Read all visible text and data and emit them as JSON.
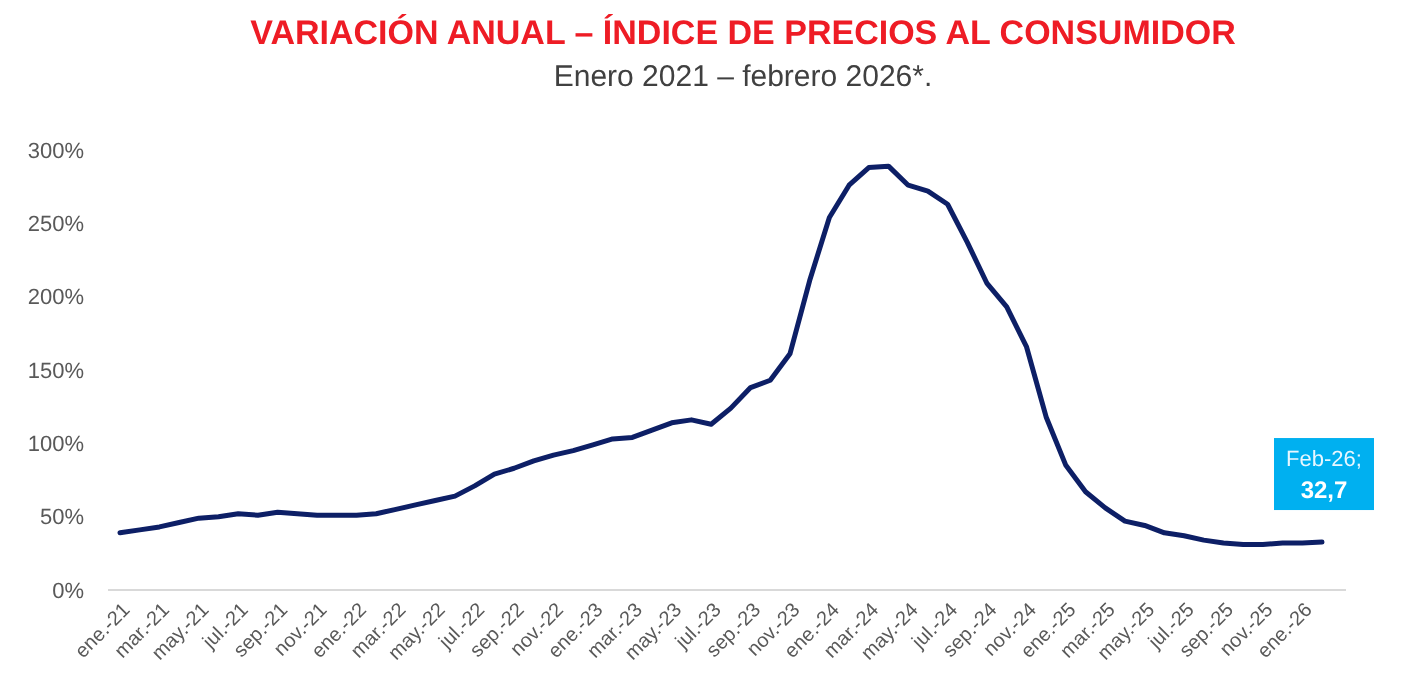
{
  "chart_data": {
    "type": "line",
    "title": "VARIACIÓN ANUAL – ÍNDICE DE PRECIOS AL CONSUMIDOR",
    "subtitle": "Enero 2021 – febrero 2026*.",
    "categories": [
      "ene.-21",
      null,
      "mar.-21",
      null,
      "may.-21",
      null,
      "jul.-21",
      null,
      "sep.-21",
      null,
      "nov.-21",
      null,
      "ene.-22",
      null,
      "mar.-22",
      null,
      "may.-22",
      null,
      "jul.-22",
      null,
      "sep.-22",
      null,
      "nov.-22",
      null,
      "ene.-23",
      null,
      "mar.-23",
      null,
      "may.-23",
      null,
      "jul.-23",
      null,
      "sep.-23",
      null,
      "nov.-23",
      null,
      "ene.-24",
      null,
      "mar.-24",
      null,
      "may.-24",
      null,
      "jul.-24",
      null,
      "sep.-24",
      null,
      "nov.-24",
      null,
      "ene.-25",
      null,
      "mar.-25",
      null,
      "may.-25",
      null,
      "jul.-25",
      null,
      "sep.-25",
      null,
      "nov.-25",
      null,
      "ene.-26",
      null
    ],
    "series": [
      {
        "color": "#0d1f66",
        "values": [
          39,
          41,
          43,
          46,
          49,
          50,
          52,
          51,
          53,
          52,
          51,
          51,
          51,
          52,
          55,
          58,
          61,
          64,
          71,
          79,
          83,
          88,
          92,
          95,
          99,
          103,
          104,
          109,
          114,
          116,
          113,
          124,
          138,
          143,
          161,
          211,
          254,
          276,
          288,
          289,
          276,
          272,
          263,
          237,
          209,
          193,
          166,
          118,
          85,
          67,
          56,
          47,
          44,
          39,
          37,
          34,
          32,
          31,
          31,
          32,
          32,
          32.7
        ]
      }
    ],
    "ylim": [
      0,
      300
    ],
    "yticks": [
      {
        "value": 0,
        "label": "0%"
      },
      {
        "value": 50,
        "label": "50%"
      },
      {
        "value": 100,
        "label": "100%"
      },
      {
        "value": 150,
        "label": "150%"
      },
      {
        "value": 200,
        "label": "200%"
      },
      {
        "value": 250,
        "label": "250%"
      },
      {
        "value": 300,
        "label": "300%"
      }
    ],
    "line_style": "solid",
    "annotations": [
      {
        "text": "Feb-26; 32,7",
        "y": 32.7
      }
    ]
  }
}
